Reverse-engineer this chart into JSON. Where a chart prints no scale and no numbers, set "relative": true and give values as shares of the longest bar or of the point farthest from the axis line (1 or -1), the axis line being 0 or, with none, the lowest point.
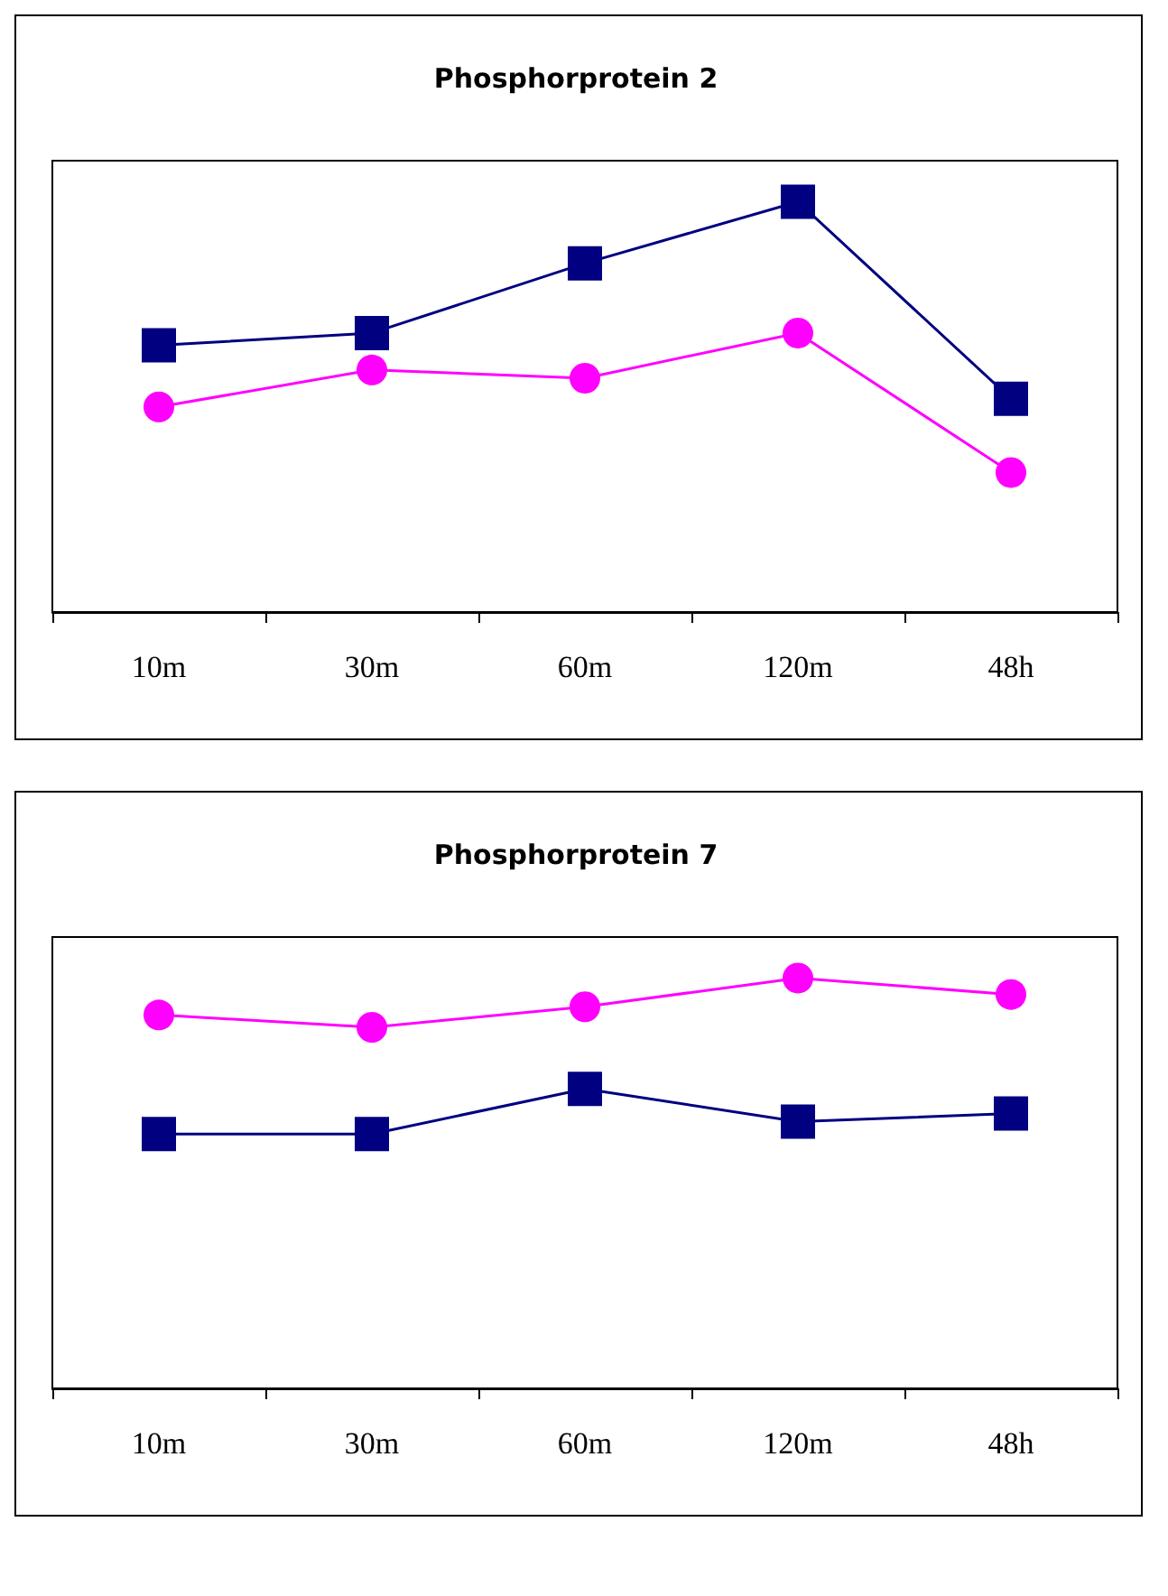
{
  "chart_data": [
    {
      "type": "line",
      "title": "Phosphorprotein 2",
      "categories": [
        "10m",
        "30m",
        "60m",
        "120m",
        "48h"
      ],
      "relative": true,
      "series": [
        {
          "color": "#000080",
          "marker": "square",
          "values": [
            0.65,
            0.68,
            0.85,
            1,
            0.52
          ]
        },
        {
          "color": "#ff00ff",
          "marker": "circle",
          "values": [
            0.5,
            0.59,
            0.57,
            0.68,
            0.34
          ]
        }
      ]
    },
    {
      "type": "line",
      "title": "Phosphorprotein 7",
      "categories": [
        "10m",
        "30m",
        "60m",
        "120m",
        "48h"
      ],
      "relative": true,
      "series": [
        {
          "color": "#ff00ff",
          "marker": "circle",
          "values": [
            0.91,
            0.88,
            0.93,
            1,
            0.96
          ]
        },
        {
          "color": "#000080",
          "marker": "square",
          "values": [
            0.62,
            0.62,
            0.73,
            0.65,
            0.67
          ]
        }
      ]
    }
  ]
}
